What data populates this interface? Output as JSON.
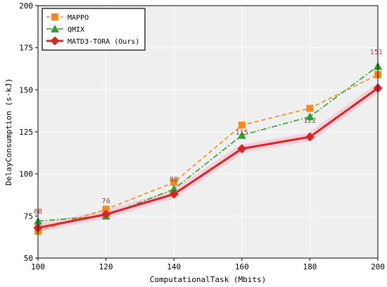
{
  "chart_data": {
    "type": "line",
    "xlabel": "ComputationalTask (Mbits)",
    "ylabel": "DelayConsumption (s·kJ)",
    "x": [
      100,
      120,
      140,
      160,
      180,
      200
    ],
    "xlim": [
      100,
      200
    ],
    "ylim": [
      50,
      200
    ],
    "x_ticks": [
      100,
      120,
      140,
      160,
      180,
      200
    ],
    "y_ticks": [
      50,
      75,
      100,
      125,
      150,
      175,
      200
    ],
    "grid": true,
    "legend_position": "top-left",
    "background": "#efefef",
    "series": [
      {
        "name": "MAPPO",
        "values": [
          66,
          79,
          95,
          129,
          139,
          159
        ],
        "color": "#f5891f",
        "marker": "square",
        "linestyle": "dashed"
      },
      {
        "name": "QMIX",
        "values": [
          72,
          75,
          91,
          123,
          134,
          164
        ],
        "color": "#2ca02c",
        "marker": "triangle",
        "linestyle": "dashdot"
      },
      {
        "name": "MATD3-TORA (Ours)",
        "values": [
          68,
          76,
          88,
          115,
          122,
          151
        ],
        "color": "#d62728",
        "marker": "diamond",
        "linestyle": "solid"
      }
    ],
    "data_labels": [
      {
        "x": 100,
        "text": "68"
      },
      {
        "x": 120,
        "text": "76"
      },
      {
        "x": 140,
        "text": "88"
      },
      {
        "x": 160,
        "text": "115"
      },
      {
        "x": 180,
        "text": "122"
      },
      {
        "x": 200,
        "text": "151"
      }
    ]
  }
}
